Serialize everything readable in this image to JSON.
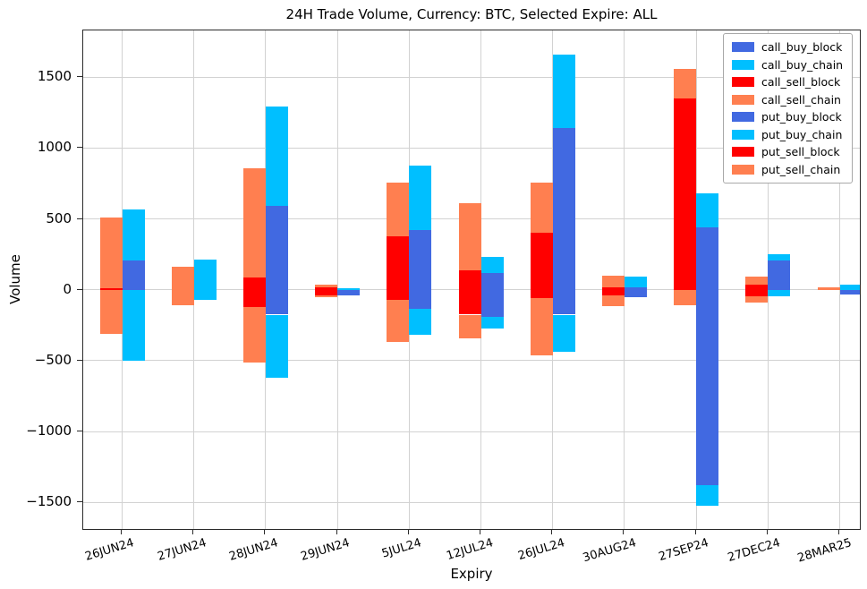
{
  "chart_data": {
    "type": "bar",
    "stacked": true,
    "grid": true,
    "legend_position": "upper right",
    "title": "24H Trade Volume, Currency: BTC, Selected Expire: ALL",
    "xlabel": "Expiry",
    "ylabel": "Volume",
    "categories": [
      "26JUN24",
      "27JUN24",
      "28JUN24",
      "29JUN24",
      "5JUL24",
      "12JUL24",
      "26JUL24",
      "30AUG24",
      "27SEP24",
      "27DEC24",
      "28MAR25"
    ],
    "yticks": [
      1500,
      1000,
      500,
      0,
      -500,
      -1000,
      -1500
    ],
    "ytick_labels": [
      "1500",
      "1000",
      "500",
      "0",
      "−500",
      "−1000",
      "−1500"
    ],
    "ylim": [
      -1700,
      1830
    ],
    "series": [
      {
        "name": "call_buy_block",
        "bar": "buy",
        "hatch": false,
        "color": "#4169E1",
        "hatch_color": "",
        "values": [
          210,
          0,
          590,
          0,
          420,
          120,
          1140,
          20,
          440,
          210,
          0
        ]
      },
      {
        "name": "call_buy_chain",
        "bar": "buy",
        "hatch": false,
        "color": "#00BFFF",
        "hatch_color": "",
        "values": [
          355,
          215,
          705,
          10,
          455,
          115,
          520,
          75,
          240,
          40,
          35
        ]
      },
      {
        "name": "call_sell_block",
        "bar": "sell",
        "hatch": false,
        "color": "#FF0000",
        "hatch_color": "",
        "values": [
          10,
          0,
          90,
          20,
          375,
          140,
          400,
          20,
          1350,
          35,
          0
        ]
      },
      {
        "name": "call_sell_chain",
        "bar": "sell",
        "hatch": false,
        "color": "#FF7F50",
        "hatch_color": "",
        "values": [
          500,
          165,
          770,
          15,
          380,
          470,
          355,
          80,
          210,
          60,
          20
        ]
      },
      {
        "name": "put_buy_block",
        "bar": "buy",
        "hatch": true,
        "color": "#4169E1",
        "hatch_color": "#1b2f9e",
        "values": [
          0,
          0,
          -175,
          -40,
          -135,
          -190,
          -175,
          -50,
          -1380,
          0,
          -30
        ]
      },
      {
        "name": "put_buy_chain",
        "bar": "buy",
        "hatch": true,
        "color": "#00BFFF",
        "hatch_color": "#1b2f9e",
        "values": [
          -500,
          -70,
          -445,
          0,
          -185,
          -80,
          -260,
          0,
          -145,
          -45,
          0
        ]
      },
      {
        "name": "put_sell_block",
        "bar": "sell",
        "hatch": true,
        "color": "#FF0000",
        "hatch_color": "#990000",
        "values": [
          0,
          0,
          -120,
          -40,
          -70,
          -175,
          -60,
          -40,
          0,
          -45,
          0
        ]
      },
      {
        "name": "put_sell_chain",
        "bar": "sell",
        "hatch": true,
        "color": "#FF7F50",
        "hatch_color": "#c03018",
        "values": [
          -310,
          -110,
          -390,
          -10,
          -295,
          -170,
          -400,
          -75,
          -110,
          -45,
          0
        ]
      }
    ]
  }
}
